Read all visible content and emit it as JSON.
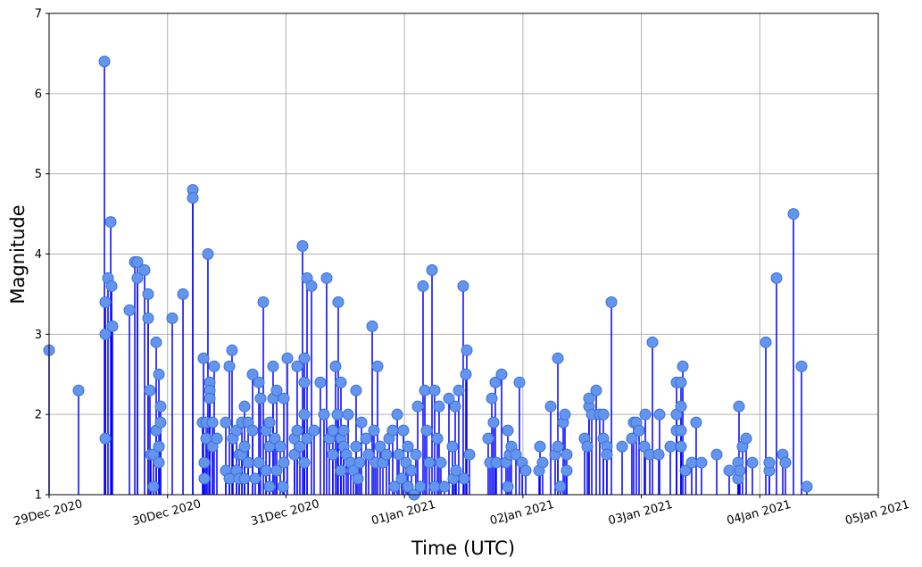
{
  "chart_data": {
    "type": "stem",
    "title": "",
    "xlabel": "Time (UTC)",
    "ylabel": "Magnitude",
    "xlim": [
      "2020-12-29T00:00",
      "2021-01-05T00:00"
    ],
    "ylim": [
      1,
      7
    ],
    "grid": true,
    "x_ticks": [
      {
        "value": "2020-12-29T00:00",
        "label": "29Dec 2020"
      },
      {
        "value": "2020-12-30T00:00",
        "label": "30Dec 2020"
      },
      {
        "value": "2020-12-31T00:00",
        "label": "31Dec 2020"
      },
      {
        "value": "2021-01-01T00:00",
        "label": "01Jan 2021"
      },
      {
        "value": "2021-01-02T00:00",
        "label": "02Jan 2021"
      },
      {
        "value": "2021-01-03T00:00",
        "label": "03Jan 2021"
      },
      {
        "value": "2021-01-04T00:00",
        "label": "04Jan 2021"
      },
      {
        "value": "2021-01-05T00:00",
        "label": "05Jan 2021"
      }
    ],
    "y_ticks": [
      1,
      2,
      3,
      4,
      5,
      6,
      7
    ],
    "colors": {
      "stem": "#0000ff",
      "marker_fill": "#6495ed",
      "marker_edge": "#3b6fe0",
      "grid": "#b0b0b0"
    },
    "points": [
      [
        "2020-12-29T00:00",
        2.8
      ],
      [
        "2020-12-29T05:58",
        2.3
      ],
      [
        "2020-12-29T11:13",
        6.4
      ],
      [
        "2020-12-29T11:24",
        3.0
      ],
      [
        "2020-12-29T11:24",
        1.7
      ],
      [
        "2020-12-29T11:24",
        3.4
      ],
      [
        "2020-12-29T11:56",
        3.7
      ],
      [
        "2020-12-29T12:29",
        4.4
      ],
      [
        "2020-12-29T12:40",
        3.6
      ],
      [
        "2020-12-29T12:50",
        3.1
      ],
      [
        "2020-12-29T16:17",
        3.3
      ],
      [
        "2020-12-29T17:22",
        3.9
      ],
      [
        "2020-12-29T17:54",
        3.9
      ],
      [
        "2020-12-29T17:54",
        3.7
      ],
      [
        "2020-12-29T19:21",
        3.8
      ],
      [
        "2020-12-29T20:04",
        3.5
      ],
      [
        "2020-12-29T20:04",
        3.2
      ],
      [
        "2020-12-29T20:26",
        2.3
      ],
      [
        "2020-12-29T20:37",
        1.5
      ],
      [
        "2020-12-29T21:09",
        1.1
      ],
      [
        "2020-12-29T21:09",
        1.5
      ],
      [
        "2020-12-29T21:42",
        1.8
      ],
      [
        "2020-12-29T21:42",
        2.9
      ],
      [
        "2020-12-29T22:15",
        1.6
      ],
      [
        "2020-12-29T22:15",
        1.4
      ],
      [
        "2020-12-29T22:15",
        2.5
      ],
      [
        "2020-12-29T22:36",
        2.1
      ],
      [
        "2020-12-29T22:36",
        1.9
      ],
      [
        "2020-12-30T00:57",
        3.2
      ],
      [
        "2020-12-30T03:08",
        3.5
      ],
      [
        "2020-12-30T05:07",
        4.8
      ],
      [
        "2020-12-30T05:07",
        4.7
      ],
      [
        "2020-12-30T07:06",
        1.9
      ],
      [
        "2020-12-30T07:17",
        2.7
      ],
      [
        "2020-12-30T07:28",
        1.4
      ],
      [
        "2020-12-30T07:28",
        1.2
      ],
      [
        "2020-12-30T07:50",
        1.7
      ],
      [
        "2020-12-30T07:50",
        1.9
      ],
      [
        "2020-12-30T08:11",
        4.0
      ],
      [
        "2020-12-30T08:33",
        2.4
      ],
      [
        "2020-12-30T08:33",
        2.3
      ],
      [
        "2020-12-30T08:33",
        2.2
      ],
      [
        "2020-12-30T09:06",
        1.6
      ],
      [
        "2020-12-30T09:06",
        1.9
      ],
      [
        "2020-12-30T09:27",
        2.6
      ],
      [
        "2020-12-30T10:00",
        1.7
      ],
      [
        "2020-12-30T11:48",
        1.9
      ],
      [
        "2020-12-30T11:48",
        1.3
      ],
      [
        "2020-12-30T12:32",
        2.6
      ],
      [
        "2020-12-30T12:32",
        1.2
      ],
      [
        "2020-12-30T13:04",
        2.8
      ],
      [
        "2020-12-30T13:15",
        1.7
      ],
      [
        "2020-12-30T13:59",
        1.3
      ],
      [
        "2020-12-30T13:59",
        1.8
      ],
      [
        "2020-12-30T14:31",
        1.5
      ],
      [
        "2020-12-30T14:31",
        1.2
      ],
      [
        "2020-12-30T15:04",
        1.9
      ],
      [
        "2020-12-30T15:04",
        1.5
      ],
      [
        "2020-12-30T15:36",
        2.1
      ],
      [
        "2020-12-30T15:36",
        1.6
      ],
      [
        "2020-12-30T15:36",
        1.2
      ],
      [
        "2020-12-30T16:20",
        1.9
      ],
      [
        "2020-12-30T16:20",
        1.4
      ],
      [
        "2020-12-30T17:14",
        2.5
      ],
      [
        "2020-12-30T17:14",
        1.8
      ],
      [
        "2020-12-30T17:46",
        1.2
      ],
      [
        "2020-12-30T18:30",
        2.4
      ],
      [
        "2020-12-30T18:30",
        1.4
      ],
      [
        "2020-12-30T18:51",
        2.2
      ],
      [
        "2020-12-30T19:24",
        3.4
      ],
      [
        "2020-12-30T19:57",
        1.8
      ],
      [
        "2020-12-30T19:57",
        1.3
      ],
      [
        "2020-12-30T20:40",
        1.9
      ],
      [
        "2020-12-30T20:40",
        1.1
      ],
      [
        "2020-12-30T20:40",
        1.6
      ],
      [
        "2020-12-30T21:23",
        2.2
      ],
      [
        "2020-12-30T21:23",
        2.6
      ],
      [
        "2020-12-30T21:45",
        1.7
      ],
      [
        "2020-12-30T22:07",
        2.3
      ],
      [
        "2020-12-30T22:07",
        1.3
      ],
      [
        "2020-12-30T22:50",
        1.6
      ],
      [
        "2020-12-30T23:23",
        1.1
      ],
      [
        "2020-12-30T23:34",
        2.2
      ],
      [
        "2020-12-30T23:34",
        1.4
      ],
      [
        "2020-12-31T00:17",
        2.7
      ],
      [
        "2020-12-31T01:44",
        1.7
      ],
      [
        "2020-12-31T01:44",
        1.5
      ],
      [
        "2020-12-31T02:16",
        2.6
      ],
      [
        "2020-12-31T02:16",
        1.8
      ],
      [
        "2020-12-31T02:49",
        1.6
      ],
      [
        "2020-12-31T03:21",
        4.1
      ],
      [
        "2020-12-31T03:43",
        2.4
      ],
      [
        "2020-12-31T03:43",
        1.4
      ],
      [
        "2020-12-31T03:43",
        2.7
      ],
      [
        "2020-12-31T03:43",
        2.0
      ],
      [
        "2020-12-31T04:16",
        3.7
      ],
      [
        "2020-12-31T04:16",
        1.7
      ],
      [
        "2020-12-31T05:10",
        3.6
      ],
      [
        "2020-12-31T05:42",
        1.8
      ],
      [
        "2020-12-31T06:58",
        2.4
      ],
      [
        "2020-12-31T07:42",
        2.0
      ],
      [
        "2020-12-31T08:14",
        3.7
      ],
      [
        "2020-12-31T08:47",
        1.7
      ],
      [
        "2020-12-31T09:30",
        1.5
      ],
      [
        "2020-12-31T09:30",
        1.8
      ],
      [
        "2020-12-31T10:03",
        2.6
      ],
      [
        "2020-12-31T10:25",
        2.0
      ],
      [
        "2020-12-31T10:35",
        3.4
      ],
      [
        "2020-12-31T11:08",
        2.4
      ],
      [
        "2020-12-31T11:08",
        1.3
      ],
      [
        "2020-12-31T11:08",
        1.7
      ],
      [
        "2020-12-31T11:41",
        1.6
      ],
      [
        "2020-12-31T11:41",
        1.8
      ],
      [
        "2020-12-31T12:13",
        1.5
      ],
      [
        "2020-12-31T12:35",
        2.0
      ],
      [
        "2020-12-31T13:07",
        1.4
      ],
      [
        "2020-12-31T13:40",
        1.3
      ],
      [
        "2020-12-31T14:12",
        1.6
      ],
      [
        "2020-12-31T14:12",
        2.3
      ],
      [
        "2020-12-31T14:34",
        1.2
      ],
      [
        "2020-12-31T14:56",
        1.4
      ],
      [
        "2020-12-31T15:18",
        1.9
      ],
      [
        "2020-12-31T16:12",
        1.7
      ],
      [
        "2020-12-31T16:44",
        1.5
      ],
      [
        "2020-12-31T17:28",
        3.1
      ],
      [
        "2020-12-31T17:49",
        1.8
      ],
      [
        "2020-12-31T18:11",
        1.4
      ],
      [
        "2020-12-31T18:33",
        2.6
      ],
      [
        "2020-12-31T19:05",
        1.6
      ],
      [
        "2020-12-31T19:38",
        1.4
      ],
      [
        "2020-12-31T20:21",
        1.5
      ],
      [
        "2020-12-31T20:54",
        1.7
      ],
      [
        "2020-12-31T21:37",
        1.8
      ],
      [
        "2020-12-31T21:59",
        1.1
      ],
      [
        "2020-12-31T22:32",
        2.0
      ],
      [
        "2020-12-31T22:53",
        1.5
      ],
      [
        "2020-12-31T23:26",
        1.2
      ],
      [
        "2020-12-31T23:47",
        1.8
      ],
      [
        "2021-01-01T00:20",
        1.4
      ],
      [
        "2021-01-01T00:42",
        1.6
      ],
      [
        "2021-01-01T00:42",
        1.1
      ],
      [
        "2021-01-01T01:25",
        1.3
      ],
      [
        "2021-01-01T01:58",
        1.0
      ],
      [
        "2021-01-01T02:19",
        1.5
      ],
      [
        "2021-01-01T02:41",
        2.1
      ],
      [
        "2021-01-01T03:14",
        1.1
      ],
      [
        "2021-01-01T03:46",
        3.6
      ],
      [
        "2021-01-01T04:08",
        2.3
      ],
      [
        "2021-01-01T04:30",
        1.8
      ],
      [
        "2021-01-01T05:02",
        1.4
      ],
      [
        "2021-01-01T05:35",
        3.8
      ],
      [
        "2021-01-01T06:07",
        2.3
      ],
      [
        "2021-01-01T06:07",
        1.1
      ],
      [
        "2021-01-01T06:40",
        1.7
      ],
      [
        "2021-01-01T07:01",
        2.1
      ],
      [
        "2021-01-01T07:23",
        1.4
      ],
      [
        "2021-01-01T08:07",
        1.1
      ],
      [
        "2021-01-01T09:01",
        2.2
      ],
      [
        "2021-01-01T09:44",
        1.6
      ],
      [
        "2021-01-01T09:55",
        1.2
      ],
      [
        "2021-01-01T10:17",
        2.1
      ],
      [
        "2021-01-01T10:28",
        1.3
      ],
      [
        "2021-01-01T11:00",
        2.3
      ],
      [
        "2021-01-01T11:54",
        3.6
      ],
      [
        "2021-01-01T12:05",
        1.2
      ],
      [
        "2021-01-01T12:27",
        2.5
      ],
      [
        "2021-01-01T12:38",
        2.8
      ],
      [
        "2021-01-01T13:10",
        1.5
      ],
      [
        "2021-01-01T16:58",
        1.7
      ],
      [
        "2021-01-01T17:20",
        1.4
      ],
      [
        "2021-01-01T17:42",
        2.2
      ],
      [
        "2021-01-01T18:03",
        1.9
      ],
      [
        "2021-01-01T18:25",
        2.4
      ],
      [
        "2021-01-01T18:36",
        1.4
      ],
      [
        "2021-01-01T19:41",
        2.5
      ],
      [
        "2021-01-01T20:35",
        1.4
      ],
      [
        "2021-01-01T20:57",
        1.8
      ],
      [
        "2021-01-01T20:57",
        1.1
      ],
      [
        "2021-01-01T21:19",
        1.5
      ],
      [
        "2021-01-01T21:40",
        1.6
      ],
      [
        "2021-01-01T22:35",
        1.5
      ],
      [
        "2021-01-01T23:18",
        2.4
      ],
      [
        "2021-01-01T23:51",
        1.4
      ],
      [
        "2021-01-02T00:34",
        1.3
      ],
      [
        "2021-01-02T03:17",
        1.3
      ],
      [
        "2021-01-02T03:28",
        1.6
      ],
      [
        "2021-01-02T04:00",
        1.4
      ],
      [
        "2021-01-02T05:38",
        2.1
      ],
      [
        "2021-01-02T06:32",
        1.5
      ],
      [
        "2021-01-02T07:05",
        2.7
      ],
      [
        "2021-01-02T07:05",
        1.6
      ],
      [
        "2021-01-02T07:37",
        1.1
      ],
      [
        "2021-01-02T08:10",
        1.9
      ],
      [
        "2021-01-02T08:31",
        2.0
      ],
      [
        "2021-01-02T08:53",
        1.5
      ],
      [
        "2021-01-02T08:53",
        1.3
      ],
      [
        "2021-01-02T12:30",
        1.7
      ],
      [
        "2021-01-02T13:03",
        1.6
      ],
      [
        "2021-01-02T13:24",
        2.1
      ],
      [
        "2021-01-02T13:24",
        2.2
      ],
      [
        "2021-01-02T13:57",
        2.0
      ],
      [
        "2021-01-02T14:51",
        2.3
      ],
      [
        "2021-01-02T15:34",
        2.0
      ],
      [
        "2021-01-02T16:18",
        2.0
      ],
      [
        "2021-01-02T16:18",
        1.7
      ],
      [
        "2021-01-02T17:01",
        1.6
      ],
      [
        "2021-01-02T17:01",
        1.5
      ],
      [
        "2021-01-02T17:56",
        3.4
      ],
      [
        "2021-01-02T20:06",
        1.6
      ],
      [
        "2021-01-02T22:05",
        1.7
      ],
      [
        "2021-01-02T22:27",
        1.9
      ],
      [
        "2021-01-02T22:59",
        1.9
      ],
      [
        "2021-01-02T23:32",
        1.8
      ],
      [
        "2021-01-03T00:37",
        1.6
      ],
      [
        "2021-01-03T00:48",
        2.0
      ],
      [
        "2021-01-03T01:42",
        1.5
      ],
      [
        "2021-01-03T02:15",
        2.9
      ],
      [
        "2021-01-03T03:31",
        1.5
      ],
      [
        "2021-01-03T03:41",
        2.0
      ],
      [
        "2021-01-03T05:52",
        1.6
      ],
      [
        "2021-01-03T07:08",
        2.4
      ],
      [
        "2021-01-03T07:08",
        2.0
      ],
      [
        "2021-01-03T07:08",
        1.8
      ],
      [
        "2021-01-03T08:02",
        2.4
      ],
      [
        "2021-01-03T08:02",
        2.1
      ],
      [
        "2021-01-03T08:02",
        1.6
      ],
      [
        "2021-01-03T08:02",
        1.8
      ],
      [
        "2021-01-03T08:24",
        2.6
      ],
      [
        "2021-01-03T08:56",
        1.3
      ],
      [
        "2021-01-03T10:12",
        1.4
      ],
      [
        "2021-01-03T11:06",
        1.9
      ],
      [
        "2021-01-03T12:11",
        1.4
      ],
      [
        "2021-01-03T15:16",
        1.5
      ],
      [
        "2021-01-03T17:48",
        1.3
      ],
      [
        "2021-01-03T19:36",
        1.4
      ],
      [
        "2021-01-03T19:36",
        1.2
      ],
      [
        "2021-01-03T19:47",
        2.1
      ],
      [
        "2021-01-03T19:58",
        1.3
      ],
      [
        "2021-01-03T20:30",
        1.6
      ],
      [
        "2021-01-03T21:14",
        1.7
      ],
      [
        "2021-01-03T22:30",
        1.4
      ],
      [
        "2021-01-04T01:13",
        2.9
      ],
      [
        "2021-01-04T01:56",
        1.3
      ],
      [
        "2021-01-04T01:56",
        1.4
      ],
      [
        "2021-01-04T03:23",
        3.7
      ],
      [
        "2021-01-04T04:39",
        1.5
      ],
      [
        "2021-01-04T05:11",
        1.4
      ],
      [
        "2021-01-04T06:49",
        4.5
      ],
      [
        "2021-01-04T08:27",
        2.6
      ],
      [
        "2021-01-04T09:32",
        1.1
      ]
    ]
  }
}
